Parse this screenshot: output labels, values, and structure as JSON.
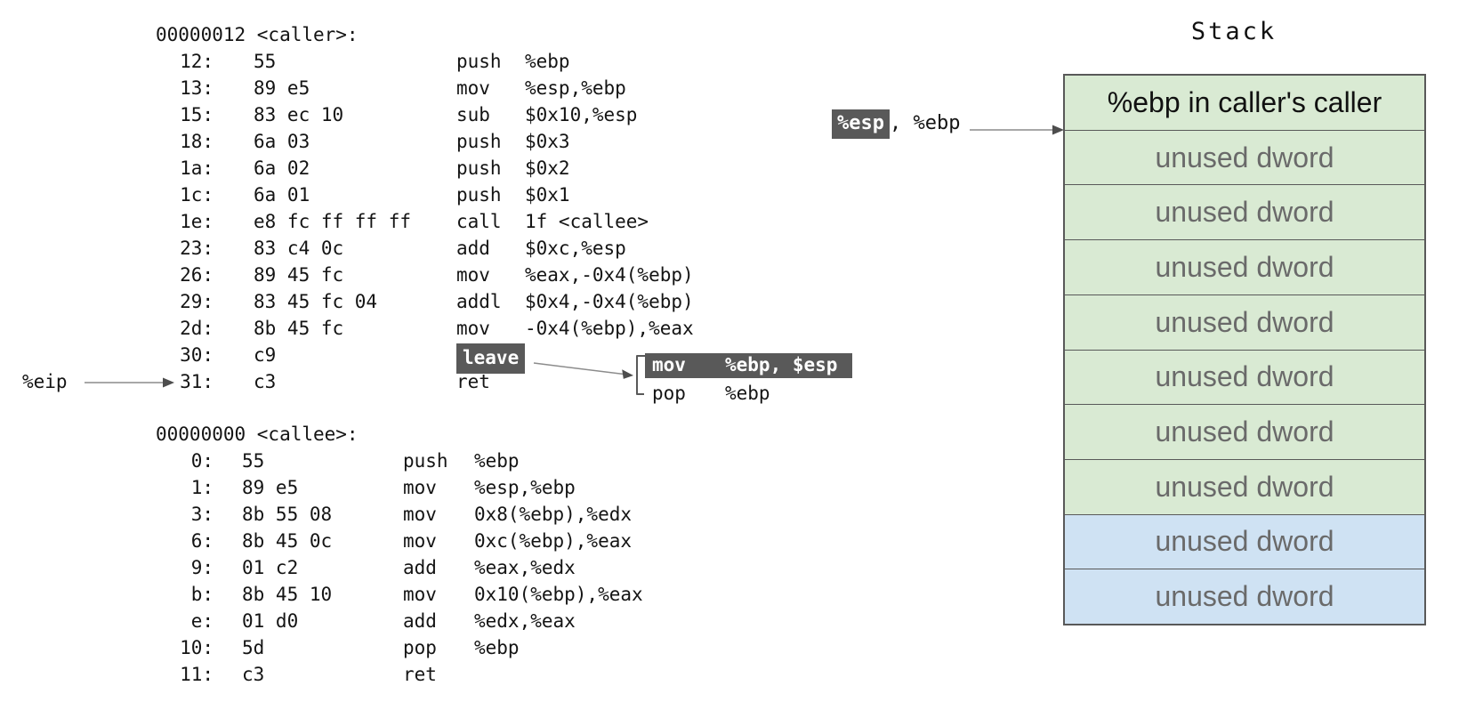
{
  "caller": {
    "header": "00000012 <caller>:",
    "lines": [
      {
        "addr": "12:",
        "bytes": "55",
        "mnem": "push",
        "ops": "%ebp",
        "highlight": false
      },
      {
        "addr": "13:",
        "bytes": "89 e5",
        "mnem": "mov",
        "ops": "%esp,%ebp",
        "highlight": false
      },
      {
        "addr": "15:",
        "bytes": "83 ec 10",
        "mnem": "sub",
        "ops": "$0x10,%esp",
        "highlight": false
      },
      {
        "addr": "18:",
        "bytes": "6a 03",
        "mnem": "push",
        "ops": "$0x3",
        "highlight": false
      },
      {
        "addr": "1a:",
        "bytes": "6a 02",
        "mnem": "push",
        "ops": "$0x2",
        "highlight": false
      },
      {
        "addr": "1c:",
        "bytes": "6a 01",
        "mnem": "push",
        "ops": "$0x1",
        "highlight": false
      },
      {
        "addr": "1e:",
        "bytes": "e8 fc ff ff ff",
        "mnem": "call",
        "ops": "1f <callee>",
        "highlight": false
      },
      {
        "addr": "23:",
        "bytes": "83 c4 0c",
        "mnem": "add",
        "ops": "$0xc,%esp",
        "highlight": false
      },
      {
        "addr": "26:",
        "bytes": "89 45 fc",
        "mnem": "mov",
        "ops": "%eax,-0x4(%ebp)",
        "highlight": false
      },
      {
        "addr": "29:",
        "bytes": "83 45 fc 04",
        "mnem": "addl",
        "ops": "$0x4,-0x4(%ebp)",
        "highlight": false
      },
      {
        "addr": "2d:",
        "bytes": "8b 45 fc",
        "mnem": "mov",
        "ops": "-0x4(%ebp),%eax",
        "highlight": false
      },
      {
        "addr": "30:",
        "bytes": "c9",
        "mnem": "leave",
        "ops": "",
        "highlight": true
      },
      {
        "addr": "31:",
        "bytes": "c3",
        "mnem": "ret",
        "ops": "",
        "highlight": false
      }
    ]
  },
  "callee": {
    "header": "00000000 <callee>:",
    "lines": [
      {
        "addr": "0:",
        "bytes": "55",
        "mnem": "push",
        "ops": "%ebp",
        "highlight": false
      },
      {
        "addr": "1:",
        "bytes": "89 e5",
        "mnem": "mov",
        "ops": "%esp,%ebp",
        "highlight": false
      },
      {
        "addr": "3:",
        "bytes": "8b 55 08",
        "mnem": "mov",
        "ops": "0x8(%ebp),%edx",
        "highlight": false
      },
      {
        "addr": "6:",
        "bytes": "8b 45 0c",
        "mnem": "mov",
        "ops": "0xc(%ebp),%eax",
        "highlight": false
      },
      {
        "addr": "9:",
        "bytes": "01 c2",
        "mnem": "add",
        "ops": "%eax,%edx",
        "highlight": false
      },
      {
        "addr": "b:",
        "bytes": "8b 45 10",
        "mnem": "mov",
        "ops": "0x10(%ebp),%eax",
        "highlight": false
      },
      {
        "addr": "e:",
        "bytes": "01 d0",
        "mnem": "add",
        "ops": "%edx,%eax",
        "highlight": false
      },
      {
        "addr": "10:",
        "bytes": "5d",
        "mnem": "pop",
        "ops": "%ebp",
        "highlight": false
      },
      {
        "addr": "11:",
        "bytes": "c3",
        "mnem": "ret",
        "ops": "",
        "highlight": false
      }
    ]
  },
  "annotations": {
    "eip_label": "%eip",
    "esp_chip": "%esp",
    "esp_suffix": ", %ebp"
  },
  "leave_expansion": {
    "line1": {
      "mnem": "mov",
      "ops": "%ebp, $esp",
      "highlight": true
    },
    "line2": {
      "mnem": "pop",
      "ops": "%ebp",
      "highlight": false
    }
  },
  "stack": {
    "title": "Stack",
    "rows": [
      {
        "label": "%ebp in caller's caller",
        "color": "green",
        "emphasis": true
      },
      {
        "label": "unused dword",
        "color": "green",
        "emphasis": false
      },
      {
        "label": "unused dword",
        "color": "green",
        "emphasis": false
      },
      {
        "label": "unused dword",
        "color": "green",
        "emphasis": false
      },
      {
        "label": "unused dword",
        "color": "green",
        "emphasis": false
      },
      {
        "label": "unused dword",
        "color": "green",
        "emphasis": false
      },
      {
        "label": "unused dword",
        "color": "green",
        "emphasis": false
      },
      {
        "label": "unused dword",
        "color": "green",
        "emphasis": false
      },
      {
        "label": "unused dword",
        "color": "blue",
        "emphasis": false
      },
      {
        "label": "unused dword",
        "color": "blue",
        "emphasis": false
      }
    ]
  },
  "colors": {
    "green_fill": "#d9ead3",
    "blue_fill": "#cfe2f3",
    "highlight_bg": "#595959",
    "muted_text": "#6a6a6a",
    "arrow_shaft": "#8c8c8c",
    "arrow_head": "#4d4d4d",
    "border": "#595959"
  }
}
